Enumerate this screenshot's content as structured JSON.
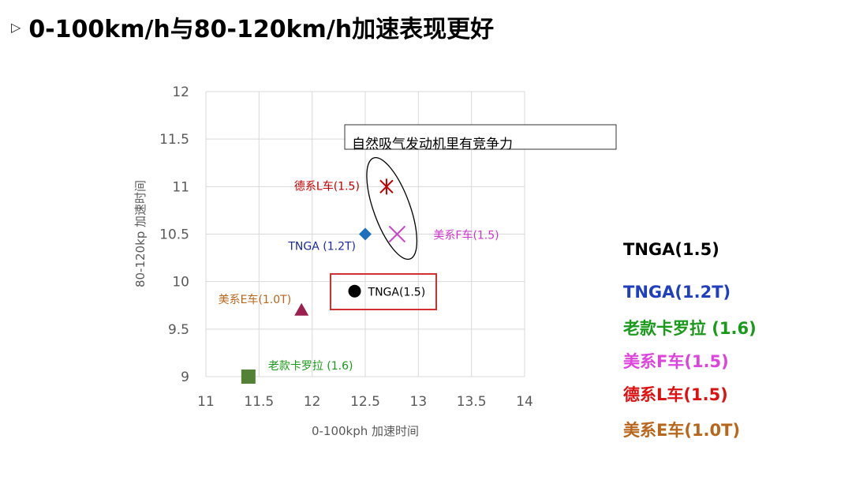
{
  "slide": {
    "arrow": "▷",
    "title": "0-100km/h与80-120km/h加速表现更好"
  },
  "chart_data": {
    "type": "scatter",
    "xlabel": "0-100kph 加速时间",
    "ylabel": "80-120kp 加速时间",
    "xlim": [
      11,
      14
    ],
    "ylim": [
      9,
      12
    ],
    "xticks": [
      "11",
      "11.5",
      "12",
      "12.5",
      "13",
      "13.5",
      "14"
    ],
    "yticks": [
      "9",
      "9.5",
      "10",
      "10.5",
      "11",
      "11.5",
      "12"
    ],
    "grid": true,
    "series": [
      {
        "name": "TNGA(1.5)",
        "x": 12.4,
        "y": 9.9,
        "marker": "circle",
        "color": "#000000",
        "label": "TNGA(1.5)",
        "label_color": "#000000"
      },
      {
        "name": "TNGA(1.2T)",
        "x": 12.5,
        "y": 10.5,
        "marker": "diamond",
        "color": "#1f6fbf",
        "label": "TNGA (1.2T)",
        "label_color": "#1a2a9a"
      },
      {
        "name": "老款卡罗拉 (1.6)",
        "x": 11.4,
        "y": 9.0,
        "marker": "square",
        "color": "#538135",
        "label": "老款卡罗拉 (1.6)",
        "label_color": "#1a9a1a"
      },
      {
        "name": "美系F车(1.5)",
        "x": 12.8,
        "y": 10.5,
        "marker": "x",
        "color": "#cc44cc",
        "label": "美系F车(1.5)",
        "label_color": "#cc33cc"
      },
      {
        "name": "德系L车(1.5)",
        "x": 12.7,
        "y": 11.0,
        "marker": "asterisk",
        "color": "#c00000",
        "label": "德系L车(1.5)",
        "label_color": "#c00000"
      },
      {
        "name": "美系E车(1.0T)",
        "x": 11.9,
        "y": 9.7,
        "marker": "triangle",
        "color": "#9b2050",
        "label": "美系E车(1.0T)",
        "label_color": "#b8661b"
      }
    ],
    "annotations": [
      {
        "text": "自然吸气发动机里有竞争力"
      }
    ],
    "legend": {
      "placement": "right",
      "entries": [
        {
          "text": "TNGA(1.5)",
          "color": "#000000"
        },
        {
          "text": "TNGA(1.2T)",
          "color": "#1f3fbf"
        },
        {
          "text": "老款卡罗拉 (1.6)",
          "color": "#1a9a1a"
        },
        {
          "text": "美系F车(1.5)",
          "color": "#dd44dd"
        },
        {
          "text": "德系L车(1.5)",
          "color": "#dd1111"
        },
        {
          "text": "美系E车(1.0T)",
          "color": "#b8661b"
        }
      ]
    }
  }
}
